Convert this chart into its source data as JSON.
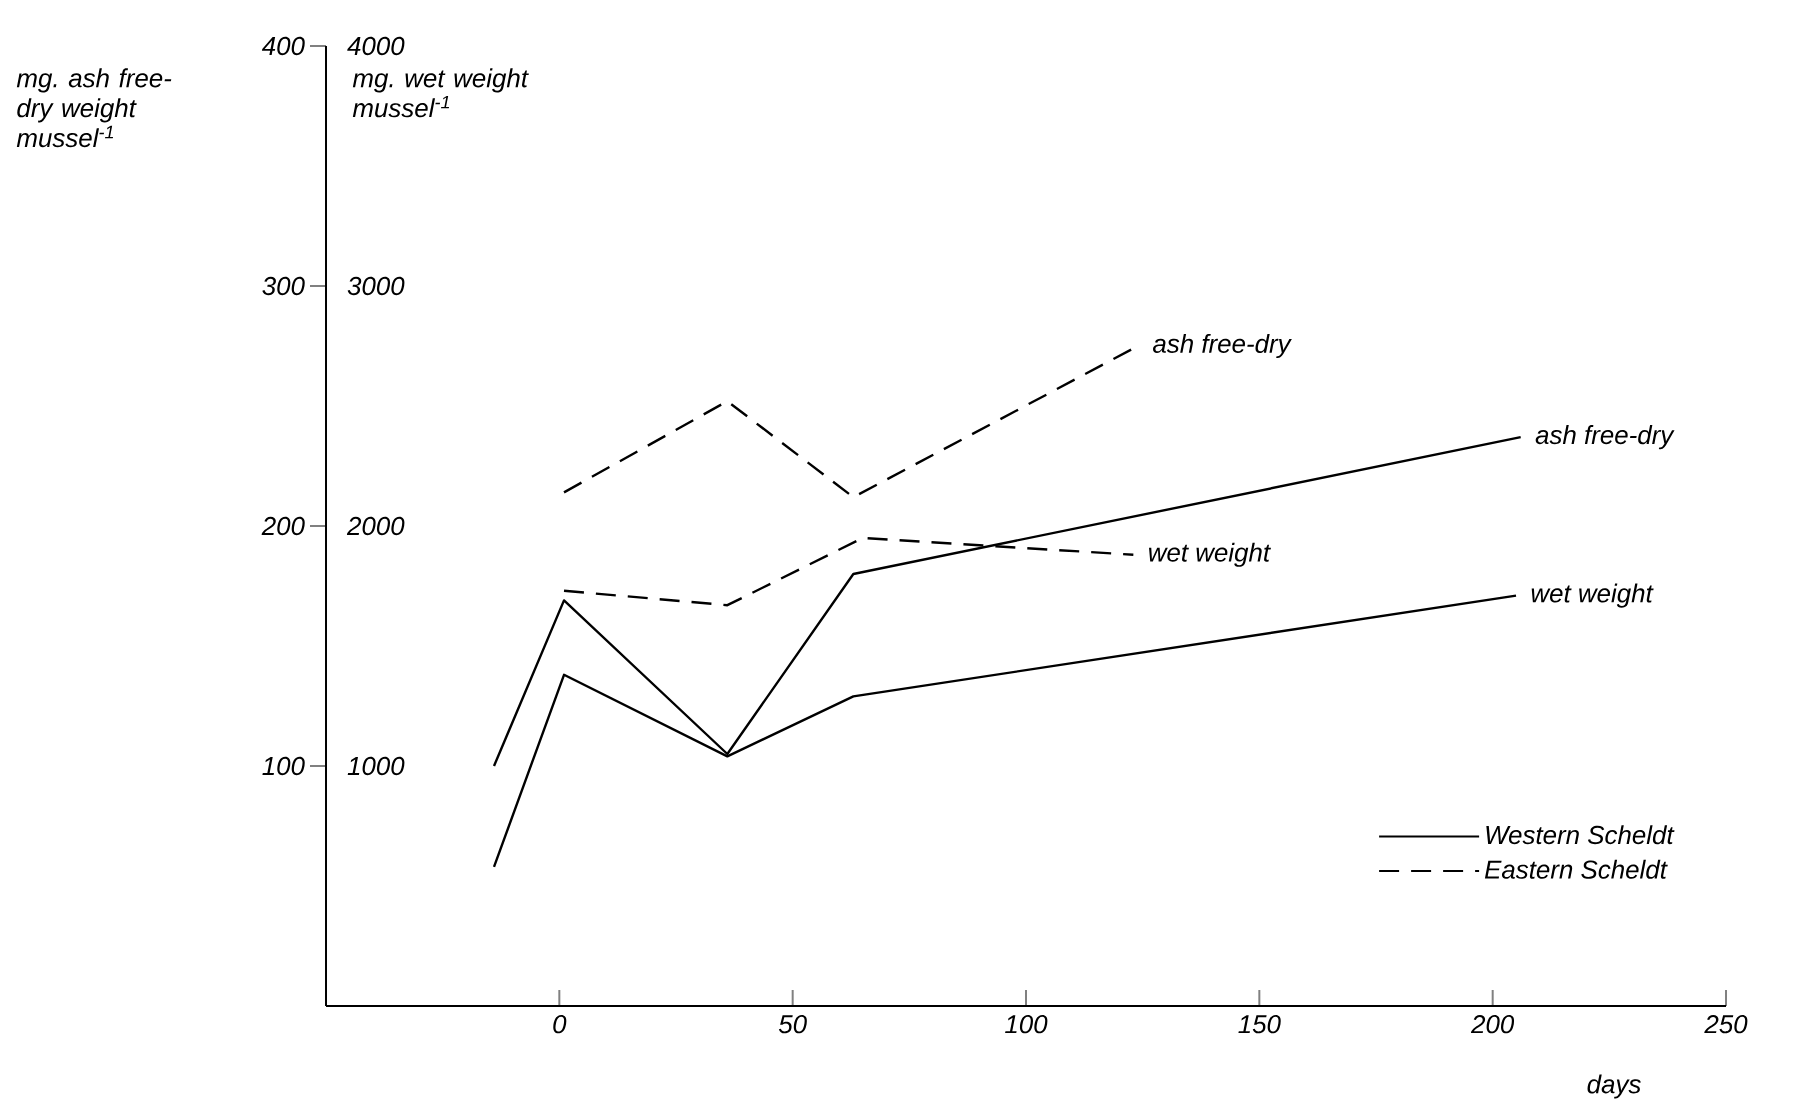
{
  "chart_data": {
    "type": "line",
    "xlabel": "days",
    "ylabel": "mg. ash free-dry weight mussel$^{-1}$",
    "y2label": "mg. wet weight mussel$^{-1}$",
    "xlim": [
      -50,
      250
    ],
    "xticks": [
      0,
      50,
      100,
      150,
      200,
      250
    ],
    "ylim": [
      0,
      400
    ],
    "yticks": [
      100,
      200,
      300,
      400
    ],
    "y2lim": [
      0,
      4000
    ],
    "y2ticks": [
      1000,
      2000,
      3000,
      4000
    ],
    "grid": false,
    "legend": "bottom right",
    "series": [
      {
        "name": "Western Scheldt",
        "color": "#000000",
        "line_style": "solid",
        "axis": "y",
        "x": [
          -14,
          1,
          36,
          63,
          206
        ],
        "values": [
          100,
          169,
          105,
          180,
          237
        ]
      },
      {
        "color": "#000000",
        "line_style": "solid",
        "axis": "y2",
        "x": [
          -14,
          1,
          36,
          63,
          205
        ],
        "values": [
          580,
          1380,
          1040,
          1290,
          1710
        ]
      },
      {
        "name": "Eastern Scheldt",
        "color": "#000000",
        "line_style": "dashed",
        "axis": "y",
        "x": [
          1,
          36,
          63,
          124
        ],
        "values": [
          214,
          252,
          212,
          275
        ]
      },
      {
        "color": "#000000",
        "line_style": "dashed",
        "axis": "y2",
        "x": [
          1,
          36,
          65,
          123
        ],
        "values": [
          1730,
          1670,
          1950,
          1880
        ]
      }
    ],
    "annotations": [
      {
        "text": "ash free-dry",
        "x": 124,
        "y": 275
      },
      {
        "text": "wet weight",
        "x": 123,
        "y": 188
      },
      {
        "text": "ash free-dry",
        "x": 206,
        "y": 237
      },
      {
        "text": "wet weight",
        "x": 205,
        "y": 171
      }
    ]
  }
}
